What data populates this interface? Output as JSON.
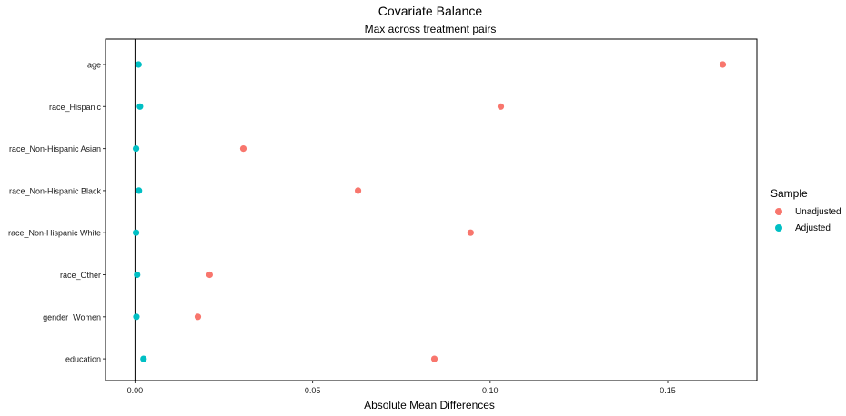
{
  "chart_data": {
    "type": "scatter",
    "title": "Covariate Balance",
    "subtitle": "Max across treatment pairs",
    "xlabel": "Absolute Mean Differences",
    "ylabel": "",
    "xlim": [
      -0.0083,
      0.1751
    ],
    "x_ticks": [
      "0.00",
      "0.05",
      "0.10",
      "0.15"
    ],
    "x_tick_values": [
      0,
      0.05,
      0.1,
      0.15
    ],
    "reference_line": 0,
    "grid": false,
    "categories": [
      "age",
      "race_Hispanic",
      "race_Non-Hispanic Asian",
      "race_Non-Hispanic Black",
      "race_Non-Hispanic White",
      "race_Other",
      "gender_Women",
      "education"
    ],
    "series": [
      {
        "name": "Unadjusted",
        "color": "#F8766D",
        "values": [
          0.1655,
          0.103,
          0.0305,
          0.0628,
          0.0945,
          0.021,
          0.0177,
          0.0843
        ]
      },
      {
        "name": "Adjusted",
        "color": "#00BFC4",
        "values": [
          0.001,
          0.0014,
          0.0003,
          0.0011,
          0.0003,
          0.0006,
          0.0004,
          0.0024
        ]
      }
    ],
    "legend": {
      "title": "Sample",
      "position": "right"
    }
  }
}
